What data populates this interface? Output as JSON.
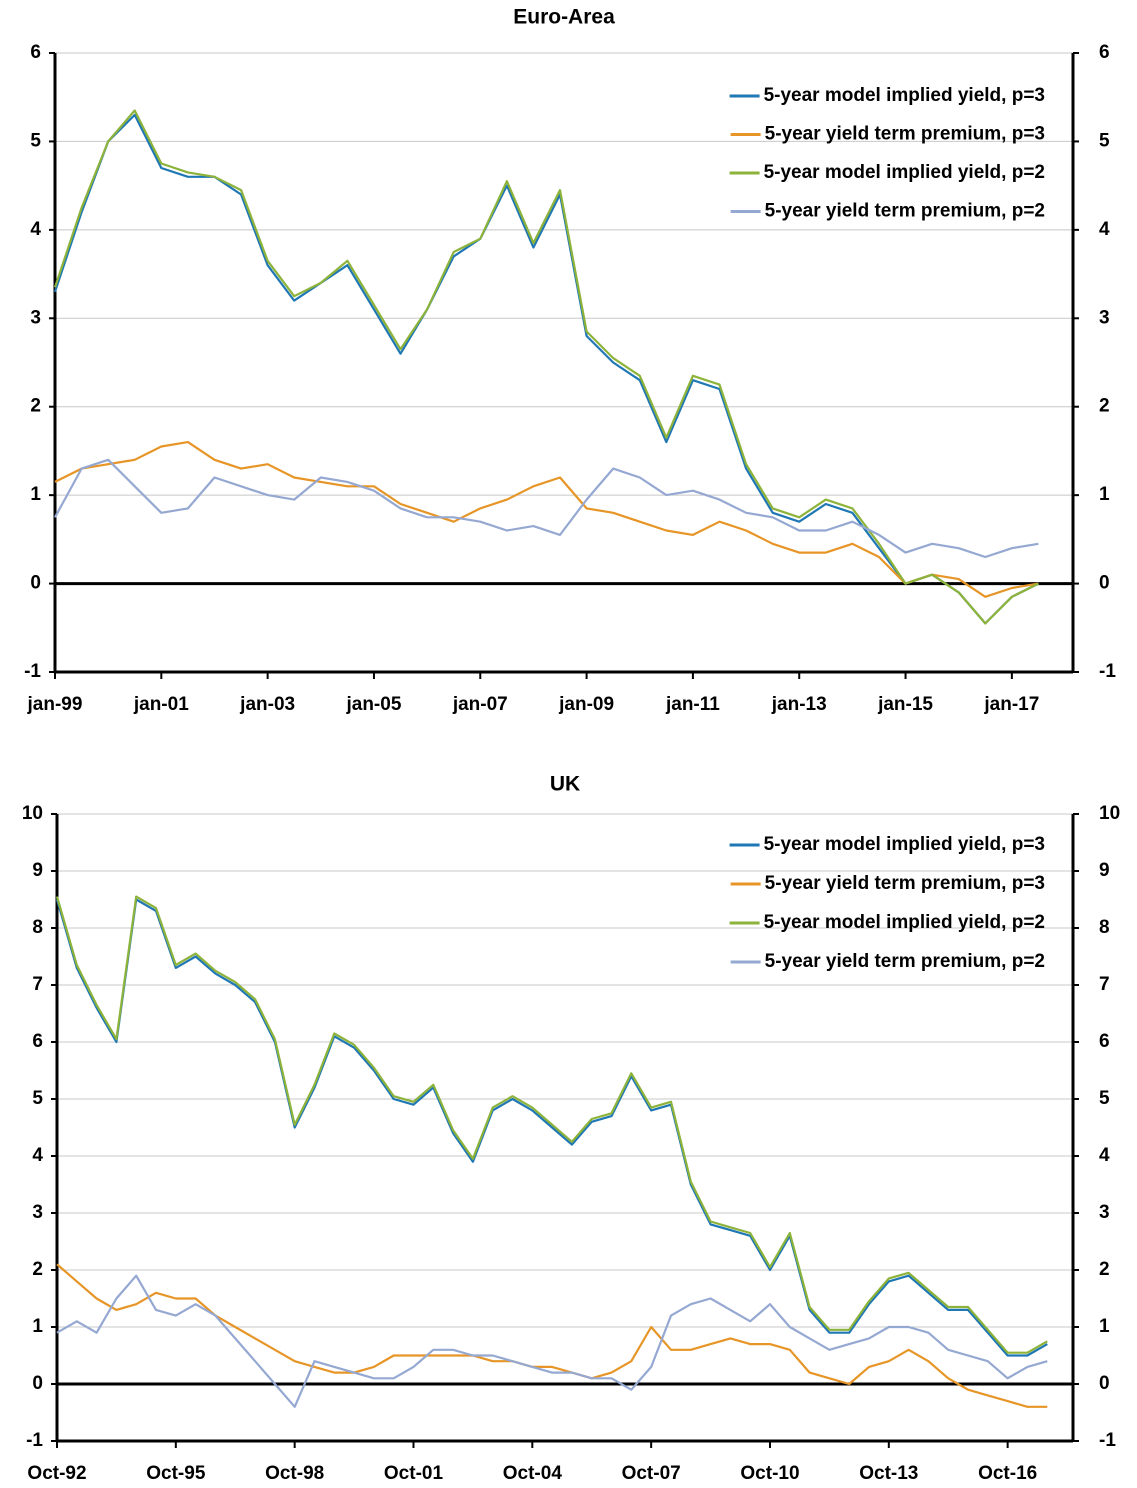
{
  "chart_data": [
    {
      "type": "line",
      "title": "Euro-Area",
      "categories": [
        "jan-99",
        null,
        null,
        null,
        "jan-01",
        null,
        null,
        null,
        "jan-03",
        null,
        null,
        null,
        "jan-05",
        null,
        null,
        null,
        "jan-07",
        null,
        null,
        null,
        "jan-09",
        null,
        null,
        null,
        "jan-11",
        null,
        null,
        null,
        "jan-13",
        null,
        null,
        null,
        "jan-15",
        null,
        null,
        null,
        "jan-17",
        null
      ],
      "series": [
        {
          "name": "5-year model implied yield, p=3",
          "color": "#1f77b4",
          "values": [
            3.3,
            4.2,
            5.0,
            5.3,
            4.7,
            4.6,
            4.6,
            4.4,
            3.6,
            3.2,
            3.4,
            3.6,
            3.1,
            2.6,
            3.1,
            3.7,
            3.9,
            4.5,
            3.8,
            4.4,
            2.8,
            2.5,
            2.3,
            1.6,
            2.3,
            2.2,
            1.3,
            0.8,
            0.7,
            0.9,
            0.8,
            0.4,
            0.0,
            0.1,
            -0.1,
            -0.45,
            -0.15,
            0.0
          ]
        },
        {
          "name": "5-year yield term premium, p=3",
          "color": "#e69526",
          "values": [
            1.15,
            1.3,
            1.35,
            1.4,
            1.55,
            1.6,
            1.4,
            1.3,
            1.35,
            1.2,
            1.15,
            1.1,
            1.1,
            0.9,
            0.8,
            0.7,
            0.85,
            0.95,
            1.1,
            1.2,
            0.85,
            0.8,
            0.7,
            0.6,
            0.55,
            0.7,
            0.6,
            0.45,
            0.35,
            0.35,
            0.45,
            0.3,
            0.0,
            0.1,
            0.05,
            -0.15,
            -0.05,
            0.0
          ]
        },
        {
          "name": "5-year model implied yield, p=2",
          "color": "#8db33a",
          "values": [
            3.35,
            4.25,
            5.0,
            5.35,
            4.75,
            4.65,
            4.6,
            4.45,
            3.65,
            3.25,
            3.4,
            3.65,
            3.15,
            2.65,
            3.1,
            3.75,
            3.9,
            4.55,
            3.85,
            4.45,
            2.85,
            2.55,
            2.35,
            1.65,
            2.35,
            2.25,
            1.35,
            0.85,
            0.75,
            0.95,
            0.85,
            0.45,
            0.0,
            0.1,
            -0.1,
            -0.45,
            -0.15,
            0.0
          ]
        },
        {
          "name": "5-year yield term premium, p=2",
          "color": "#95a8d2",
          "values": [
            0.75,
            1.3,
            1.4,
            1.1,
            0.8,
            0.85,
            1.2,
            1.1,
            1.0,
            0.95,
            1.2,
            1.15,
            1.05,
            0.85,
            0.75,
            0.75,
            0.7,
            0.6,
            0.65,
            0.55,
            0.95,
            1.3,
            1.2,
            1.0,
            1.05,
            0.95,
            0.8,
            0.75,
            0.6,
            0.6,
            0.7,
            0.55,
            0.35,
            0.45,
            0.4,
            0.3,
            0.4,
            0.45
          ]
        }
      ],
      "ylim": [
        -1,
        6
      ],
      "yticks": [
        -1,
        0,
        1,
        2,
        3,
        4,
        5,
        6
      ],
      "y2lim": [
        -1,
        6
      ],
      "y2ticks": [
        -1,
        0,
        1,
        2,
        3,
        4,
        5,
        6
      ],
      "grid": true,
      "legend": "upper right"
    },
    {
      "type": "line",
      "title": "UK",
      "categories": [
        "Oct-92",
        null,
        null,
        null,
        null,
        null,
        "Oct-95",
        null,
        null,
        null,
        null,
        null,
        "Oct-98",
        null,
        null,
        null,
        null,
        null,
        "Oct-01",
        null,
        null,
        null,
        null,
        null,
        "Oct-04",
        null,
        null,
        null,
        null,
        null,
        "Oct-07",
        null,
        null,
        null,
        null,
        null,
        "Oct-10",
        null,
        null,
        null,
        null,
        null,
        "Oct-13",
        null,
        null,
        null,
        null,
        null,
        "Oct-16",
        null,
        null
      ],
      "series": [
        {
          "name": "5-year model implied yield, p=3",
          "color": "#1f77b4",
          "values": [
            8.5,
            7.3,
            6.6,
            6.0,
            8.5,
            8.3,
            7.3,
            7.5,
            7.2,
            7.0,
            6.7,
            6.0,
            4.5,
            5.2,
            6.1,
            5.9,
            5.5,
            5.0,
            4.9,
            5.2,
            4.4,
            3.9,
            4.8,
            5.0,
            4.8,
            4.5,
            4.2,
            4.6,
            4.7,
            5.4,
            4.8,
            4.9,
            3.5,
            2.8,
            2.7,
            2.6,
            2.0,
            2.6,
            1.3,
            0.9,
            0.9,
            1.4,
            1.8,
            1.9,
            1.6,
            1.3,
            1.3,
            0.9,
            0.5,
            0.5,
            0.7
          ]
        },
        {
          "name": "5-year yield term premium, p=3",
          "color": "#e69526",
          "values": [
            2.1,
            1.8,
            1.5,
            1.3,
            1.4,
            1.6,
            1.5,
            1.5,
            1.2,
            1.0,
            0.8,
            0.6,
            0.4,
            0.3,
            0.2,
            0.2,
            0.3,
            0.5,
            0.5,
            0.5,
            0.5,
            0.5,
            0.4,
            0.4,
            0.3,
            0.3,
            0.2,
            0.1,
            0.2,
            0.4,
            1.0,
            0.6,
            0.6,
            0.7,
            0.8,
            0.7,
            0.7,
            0.6,
            0.2,
            0.1,
            0.0,
            0.3,
            0.4,
            0.6,
            0.4,
            0.1,
            -0.1,
            -0.2,
            -0.3,
            -0.4,
            -0.4
          ]
        },
        {
          "name": "5-year model implied yield, p=2",
          "color": "#8db33a",
          "values": [
            8.55,
            7.35,
            6.65,
            6.05,
            8.55,
            8.35,
            7.35,
            7.55,
            7.25,
            7.05,
            6.75,
            6.05,
            4.55,
            5.25,
            6.15,
            5.95,
            5.55,
            5.05,
            4.95,
            5.25,
            4.45,
            3.95,
            4.85,
            5.05,
            4.85,
            4.55,
            4.25,
            4.65,
            4.75,
            5.45,
            4.85,
            4.95,
            3.55,
            2.85,
            2.75,
            2.65,
            2.05,
            2.65,
            1.35,
            0.95,
            0.95,
            1.45,
            1.85,
            1.95,
            1.65,
            1.35,
            1.35,
            0.95,
            0.55,
            0.55,
            0.75
          ]
        },
        {
          "name": "5-year yield term premium, p=2",
          "color": "#95a8d2",
          "values": [
            0.9,
            1.1,
            0.9,
            1.5,
            1.9,
            1.3,
            1.2,
            1.4,
            1.2,
            0.8,
            0.4,
            0.0,
            -0.4,
            0.4,
            0.3,
            0.2,
            0.1,
            0.1,
            0.3,
            0.6,
            0.6,
            0.5,
            0.5,
            0.4,
            0.3,
            0.2,
            0.2,
            0.1,
            0.1,
            -0.1,
            0.3,
            1.2,
            1.4,
            1.5,
            1.3,
            1.1,
            1.4,
            1.0,
            0.8,
            0.6,
            0.7,
            0.8,
            1.0,
            1.0,
            0.9,
            0.6,
            0.5,
            0.4,
            0.1,
            0.3,
            0.4
          ]
        }
      ],
      "ylim": [
        -1,
        10
      ],
      "yticks": [
        -1,
        0,
        1,
        2,
        3,
        4,
        5,
        6,
        7,
        8,
        9,
        10
      ],
      "y2lim": [
        -1,
        10
      ],
      "y2ticks": [
        -1,
        0,
        1,
        2,
        3,
        4,
        5,
        6,
        7,
        8,
        9,
        10
      ],
      "grid": true,
      "legend": "upper right"
    }
  ]
}
